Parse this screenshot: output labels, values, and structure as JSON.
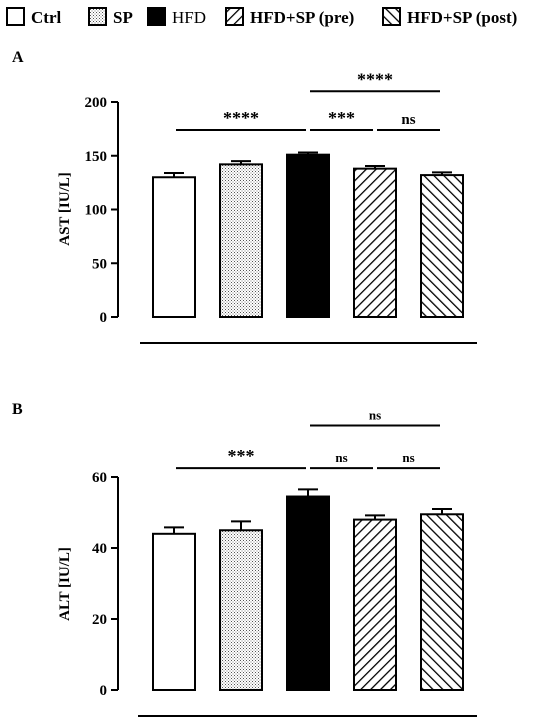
{
  "legend": [
    {
      "label": "Ctrl",
      "pattern": "open",
      "bold": true
    },
    {
      "label": "SP",
      "pattern": "dots",
      "bold": true
    },
    {
      "label": "HFD",
      "pattern": "solid",
      "bold": false
    },
    {
      "label": "HFD+SP (pre)",
      "pattern": "back-diag",
      "bold": true
    },
    {
      "label": "HFD+SP (post)",
      "pattern": "fwd-diag",
      "bold": true
    }
  ],
  "chart_data": [
    {
      "type": "bar",
      "panel_label": "A",
      "ylabel": "AST [IU/L]",
      "ylim": [
        0,
        200
      ],
      "yticks": [
        0,
        50,
        100,
        150,
        200
      ],
      "categories": [
        "Ctrl",
        "SP",
        "HFD",
        "HFD+SP (pre)",
        "HFD+SP (post)"
      ],
      "values": [
        130,
        142,
        151,
        138,
        132
      ],
      "errors": [
        4,
        3,
        2,
        2.5,
        2.5
      ],
      "significance": [
        {
          "from": 0,
          "to": 2,
          "label": "****",
          "y": 174
        },
        {
          "from": 2,
          "to": 3,
          "label": "***",
          "y": 174
        },
        {
          "from": 3,
          "to": 4,
          "label": "ns",
          "y": 174
        },
        {
          "from": 2,
          "to": 4,
          "label": "****",
          "y": 210
        }
      ]
    },
    {
      "type": "bar",
      "panel_label": "B",
      "ylabel": "ALT [IU/L]",
      "ylim": [
        0,
        60
      ],
      "yticks": [
        0,
        20,
        40,
        60
      ],
      "categories": [
        "Ctrl",
        "SP",
        "HFD",
        "HFD+SP (pre)",
        "HFD+SP (post)"
      ],
      "values": [
        44,
        45,
        54.5,
        48,
        49.5
      ],
      "errors": [
        1.8,
        2.5,
        2,
        1.2,
        1.5
      ],
      "significance": [
        {
          "from": 0,
          "to": 2,
          "label": "***",
          "y": 62.5
        },
        {
          "from": 2,
          "to": 3,
          "label": "ns",
          "y": 62.5
        },
        {
          "from": 3,
          "to": 4,
          "label": "ns",
          "y": 62.5
        },
        {
          "from": 2,
          "to": 4,
          "label": "ns",
          "y": 74.5
        }
      ]
    }
  ]
}
